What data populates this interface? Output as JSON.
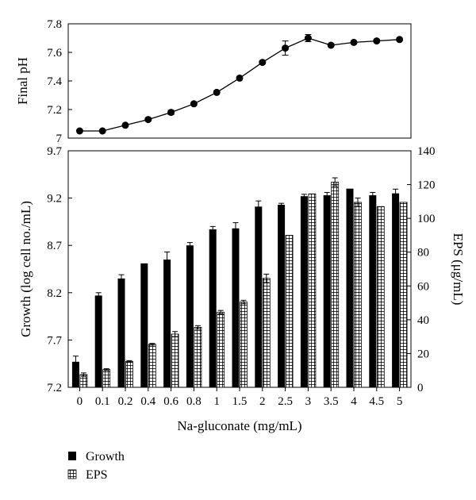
{
  "chart_data": [
    {
      "type": "line",
      "ylabel": "Final pH",
      "yticks": [
        "7",
        "7.2",
        "7.4",
        "7.6",
        "7.8"
      ],
      "ylim": [
        7.0,
        7.8
      ],
      "categories": [
        "0",
        "0.1",
        "0.2",
        "0.4",
        "0.6",
        "0.8",
        "1",
        "1.5",
        "2",
        "2.5",
        "3",
        "3.5",
        "4",
        "4.5",
        "5"
      ],
      "series": [
        {
          "values": [
            7.05,
            7.05,
            7.09,
            7.13,
            7.18,
            7.24,
            7.32,
            7.42,
            7.53,
            7.63,
            7.7,
            7.65,
            7.67,
            7.68,
            7.69
          ],
          "errors": [
            0.005,
            0.005,
            0.005,
            0.01,
            0.015,
            0.01,
            0.01,
            0.01,
            0.01,
            0.05,
            0.025,
            0.01,
            0.01,
            0.01,
            0.01
          ]
        }
      ],
      "marker": "circle",
      "color": "#000000"
    },
    {
      "type": "bar",
      "xlabel": "Na-gluconate (mg/mL)",
      "ylabel_left": "Growth (log cell no./mL)",
      "ylabel_right": "EPS (μg/mL)",
      "yticks_left": [
        "7.2",
        "7.7",
        "8.2",
        "8.7",
        "9.2",
        "9.7"
      ],
      "yticks_right": [
        "0",
        "20",
        "40",
        "60",
        "80",
        "100",
        "120",
        "140"
      ],
      "ylim_left": [
        7.2,
        9.7
      ],
      "ylim_right": [
        0,
        140
      ],
      "categories": [
        "0",
        "0.1",
        "0.2",
        "0.4",
        "0.6",
        "0.8",
        "1",
        "1.5",
        "2",
        "2.5",
        "3",
        "3.5",
        "4",
        "4.5",
        "5"
      ],
      "series": [
        {
          "name": "Growth",
          "axis": "left",
          "fill": "solid-black",
          "values": [
            7.47,
            8.17,
            8.35,
            8.51,
            8.55,
            8.7,
            8.87,
            8.88,
            9.11,
            9.13,
            9.22,
            9.23,
            9.3,
            9.23,
            9.25
          ],
          "errors": [
            0.06,
            0.03,
            0.04,
            0.0,
            0.08,
            0.03,
            0.03,
            0.06,
            0.06,
            0.015,
            0.02,
            0.03,
            0.0,
            0.03,
            0.045
          ]
        },
        {
          "name": "EPS",
          "axis": "right",
          "fill": "hatched-white",
          "values": [
            7.5,
            10.5,
            15.3,
            25.5,
            31.5,
            35.5,
            44.5,
            50.5,
            64.5,
            90.0,
            114.5,
            121.5,
            109.5,
            107.0,
            109.5
          ],
          "errors": [
            1.0,
            0.5,
            0.5,
            0.5,
            1.5,
            1.0,
            1.0,
            1.0,
            2.5,
            0.0,
            0.0,
            2.5,
            2.5,
            0.0,
            0.0
          ]
        }
      ],
      "legend_position": "bottom-left"
    }
  ]
}
